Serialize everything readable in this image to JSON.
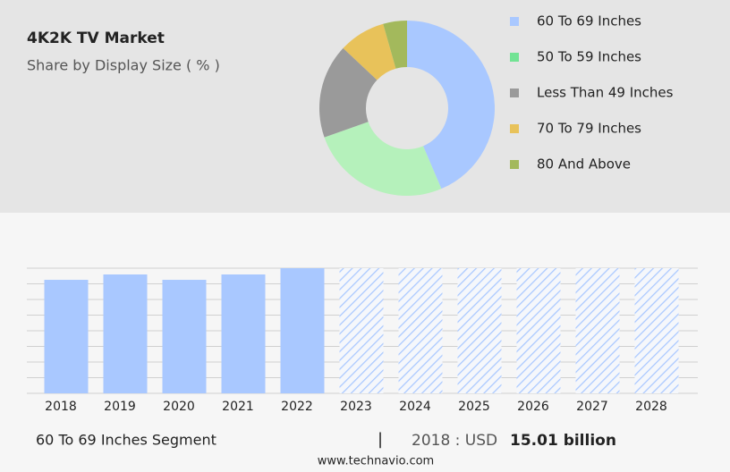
{
  "chart_data": [
    {
      "type": "pie",
      "title": "4K2K TV Market",
      "subtitle": "Share by Display Size ( % )",
      "categories": [
        "60 To 69 Inches",
        "50 To 59 Inches",
        "Less Than 49 Inches",
        "70 To 79 Inches",
        "80 And Above"
      ],
      "values": [
        43.6,
        26,
        17.4,
        8.6,
        4.4
      ],
      "colors": [
        "#a9c8ff",
        "#b5f1bb",
        "#9a9a9a",
        "#e8c25a",
        "#a3b95c"
      ],
      "legend_colors": [
        "#a9c8ff",
        "#72e394",
        "#9a9a9a",
        "#e8c25a",
        "#a3b95c"
      ]
    },
    {
      "type": "bar",
      "categories": [
        "2018",
        "2019",
        "2020",
        "2021",
        "2022",
        "2023",
        "2024",
        "2025",
        "2026",
        "2027",
        "2028"
      ],
      "values": [
        15.01,
        15.72,
        15.01,
        15.72,
        16.55,
        null,
        null,
        null,
        null,
        null,
        null
      ],
      "color": "#a9c8ff",
      "ylim": [
        0,
        16.55
      ],
      "grid": true
    }
  ],
  "footer": {
    "segment": "60 To 69 Inches Segment",
    "separator": "|",
    "year_label": "2018 : USD",
    "value_label": "15.01 billion",
    "site": "www.technavio.com"
  }
}
